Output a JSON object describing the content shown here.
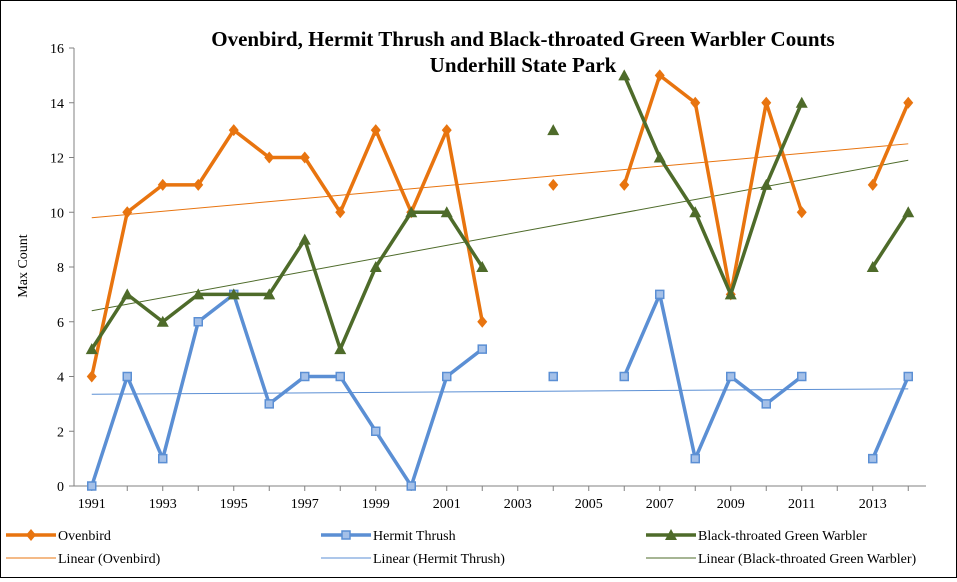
{
  "chart_data": {
    "type": "line",
    "title": "Ovenbird, Hermit Thrush and Black-throated Green Warbler Counts",
    "subtitle": "Underhill State Park",
    "xlabel": "",
    "ylabel": "Max Count",
    "xlim": [
      1991,
      2014
    ],
    "ylim": [
      0,
      16
    ],
    "y_ticks": [
      "0",
      "2",
      "4",
      "6",
      "8",
      "10",
      "12",
      "14",
      "16"
    ],
    "x_ticks": [
      "1991",
      "1993",
      "1995",
      "1997",
      "1999",
      "2001",
      "2003",
      "2005",
      "2007",
      "2009",
      "2011",
      "2013"
    ],
    "grid": false,
    "legend_position": "bottom",
    "series": [
      {
        "name": "Ovenbird",
        "color": "#E8740F",
        "marker": "diamond",
        "points": [
          [
            1991,
            4
          ],
          [
            1992,
            10
          ],
          [
            1993,
            11
          ],
          [
            1994,
            11
          ],
          [
            1995,
            13
          ],
          [
            1996,
            12
          ],
          [
            1997,
            12
          ],
          [
            1998,
            10
          ],
          [
            1999,
            13
          ],
          [
            2000,
            10
          ],
          [
            2001,
            13
          ],
          [
            2002,
            6
          ],
          [
            2004,
            11
          ],
          [
            2006,
            11
          ],
          [
            2007,
            15
          ],
          [
            2008,
            14
          ],
          [
            2009,
            7
          ],
          [
            2010,
            14
          ],
          [
            2011,
            10
          ],
          [
            2013,
            11
          ],
          [
            2014,
            14
          ]
        ],
        "trend_name": "Linear (Ovenbird)",
        "trend": [
          [
            1991,
            9.8
          ],
          [
            2014,
            12.5
          ]
        ]
      },
      {
        "name": "Hermit Thrush",
        "color": "#5B8FD4",
        "marker": "square",
        "points": [
          [
            1991,
            0
          ],
          [
            1992,
            4
          ],
          [
            1993,
            1
          ],
          [
            1994,
            6
          ],
          [
            1995,
            7
          ],
          [
            1996,
            3
          ],
          [
            1997,
            4
          ],
          [
            1998,
            4
          ],
          [
            1999,
            2
          ],
          [
            2000,
            0
          ],
          [
            2001,
            4
          ],
          [
            2002,
            5
          ],
          [
            2004,
            4
          ],
          [
            2006,
            4
          ],
          [
            2007,
            7
          ],
          [
            2008,
            1
          ],
          [
            2009,
            4
          ],
          [
            2010,
            3
          ],
          [
            2011,
            4
          ],
          [
            2013,
            1
          ],
          [
            2014,
            4
          ]
        ],
        "trend_name": "Linear (Hermit Thrush)",
        "trend": [
          [
            1991,
            3.35
          ],
          [
            2014,
            3.55
          ]
        ]
      },
      {
        "name": "Black-throated Green Warbler",
        "color": "#4E6B2A",
        "marker": "triangle",
        "points": [
          [
            1991,
            5
          ],
          [
            1992,
            7
          ],
          [
            1993,
            6
          ],
          [
            1994,
            7
          ],
          [
            1995,
            7
          ],
          [
            1996,
            7
          ],
          [
            1997,
            9
          ],
          [
            1998,
            5
          ],
          [
            1999,
            8
          ],
          [
            2000,
            10
          ],
          [
            2001,
            10
          ],
          [
            2002,
            8
          ],
          [
            2004,
            13
          ],
          [
            2006,
            15
          ],
          [
            2007,
            12
          ],
          [
            2008,
            10
          ],
          [
            2009,
            7
          ],
          [
            2010,
            11
          ],
          [
            2011,
            14
          ],
          [
            2013,
            8
          ],
          [
            2014,
            10
          ]
        ],
        "trend_name": "Linear (Black-throated Green Warbler)",
        "trend": [
          [
            1991,
            6.4
          ],
          [
            2014,
            11.9
          ]
        ]
      }
    ]
  }
}
